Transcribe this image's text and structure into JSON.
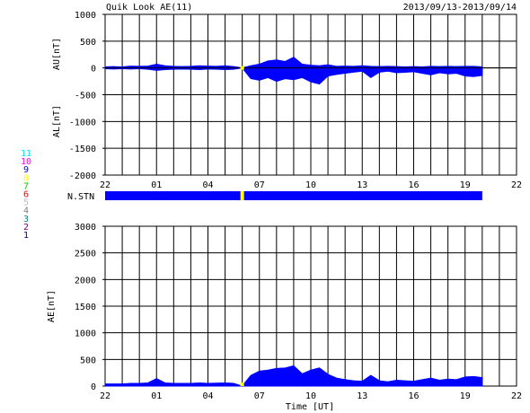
{
  "header": {
    "title": "Quik Look AE(11)",
    "date_range": "2013/09/13-2013/09/14"
  },
  "colors": {
    "fill": "#0000ff",
    "station_bar": "#0000ff",
    "gap_marker": "#ffff00",
    "grid": "#000000"
  },
  "station_legend": [
    {
      "label": "11",
      "color": "#00e5ee"
    },
    {
      "label": "10",
      "color": "#ff00ff"
    },
    {
      "label": "9",
      "color": "#0000ff"
    },
    {
      "label": "8",
      "color": "#ffff00"
    },
    {
      "label": "7",
      "color": "#00cc00"
    },
    {
      "label": "6",
      "color": "#ff0000"
    },
    {
      "label": "5",
      "color": "#c0c0c0"
    },
    {
      "label": "4",
      "color": "#808080"
    },
    {
      "label": "3",
      "color": "#008080"
    },
    {
      "label": "2",
      "color": "#800080"
    },
    {
      "label": "1",
      "color": "#000080"
    }
  ],
  "nstn_label": "N.STN",
  "chart_data": [
    {
      "type": "area",
      "panel": "AU/AL",
      "ylabel_top": "AU[nT]",
      "ylabel_bottom": "AL[nT]",
      "ylim": [
        -2000,
        1000
      ],
      "yticks": [
        1000,
        500,
        0,
        -500,
        -1000,
        -1500,
        -2000
      ],
      "ytick_labels": [
        "1000",
        "500",
        "0",
        "-500",
        "-1000",
        "-1500",
        "-2000"
      ],
      "xlim": [
        0,
        24
      ],
      "xtick_labels": [
        "22",
        "01",
        "04",
        "07",
        "10",
        "13",
        "16",
        "19",
        "22"
      ],
      "grid": true,
      "x_hours": [
        0,
        0.5,
        1,
        1.5,
        2,
        2.5,
        3,
        3.5,
        4,
        4.5,
        5,
        5.5,
        6,
        6.5,
        7,
        7.5,
        8,
        8.5,
        9,
        9.5,
        10,
        10.5,
        11,
        11.5,
        12,
        12.5,
        13,
        13.5,
        14,
        14.5,
        15,
        15.5,
        16,
        16.5,
        17,
        17.5,
        18,
        18.5,
        19,
        19.5,
        20,
        20.5,
        21,
        21.5,
        22
      ],
      "au": [
        20,
        25,
        20,
        35,
        30,
        35,
        70,
        40,
        30,
        25,
        30,
        40,
        35,
        30,
        40,
        25,
        0,
        40,
        70,
        130,
        150,
        120,
        200,
        70,
        50,
        40,
        60,
        30,
        35,
        30,
        40,
        30,
        25,
        30,
        25,
        20,
        25,
        20,
        30,
        25,
        30,
        25,
        30,
        30,
        20
      ],
      "al": [
        -15,
        -20,
        -15,
        -20,
        -15,
        -25,
        -45,
        -30,
        -25,
        -20,
        -25,
        -30,
        -20,
        -25,
        -30,
        -25,
        0,
        -200,
        -230,
        -180,
        -250,
        -200,
        -220,
        -180,
        -260,
        -300,
        -150,
        -120,
        -100,
        -80,
        -60,
        -180,
        -80,
        -60,
        -90,
        -80,
        -70,
        -100,
        -130,
        -90,
        -110,
        -100,
        -150,
        -160,
        -140
      ]
    },
    {
      "type": "area",
      "panel": "AE",
      "ylabel": "AE[nT]",
      "xlabel": "Time [UT]",
      "ylim": [
        0,
        3000
      ],
      "yticks": [
        3000,
        2500,
        2000,
        1500,
        1000,
        500,
        0
      ],
      "ytick_labels": [
        "3000",
        "2500",
        "2000",
        "1500",
        "1000",
        "500",
        "0"
      ],
      "xlim": [
        0,
        24
      ],
      "xtick_labels": [
        "22",
        "01",
        "04",
        "07",
        "10",
        "13",
        "16",
        "19",
        "22"
      ],
      "grid": true,
      "x_hours": [
        0,
        0.5,
        1,
        1.5,
        2,
        2.5,
        3,
        3.5,
        4,
        4.5,
        5,
        5.5,
        6,
        6.5,
        7,
        7.5,
        8,
        8.5,
        9,
        9.5,
        10,
        10.5,
        11,
        11.5,
        12,
        12.5,
        13,
        13.5,
        14,
        14.5,
        15,
        15.5,
        16,
        16.5,
        17,
        17.5,
        18,
        18.5,
        19,
        19.5,
        20,
        20.5,
        21,
        21.5,
        22
      ],
      "ae": [
        40,
        40,
        40,
        50,
        50,
        60,
        140,
        60,
        50,
        50,
        50,
        60,
        50,
        55,
        60,
        50,
        0,
        200,
        280,
        300,
        330,
        340,
        380,
        230,
        300,
        340,
        220,
        150,
        120,
        100,
        90,
        200,
        100,
        80,
        110,
        100,
        90,
        120,
        150,
        110,
        130,
        120,
        170,
        180,
        160
      ]
    }
  ]
}
